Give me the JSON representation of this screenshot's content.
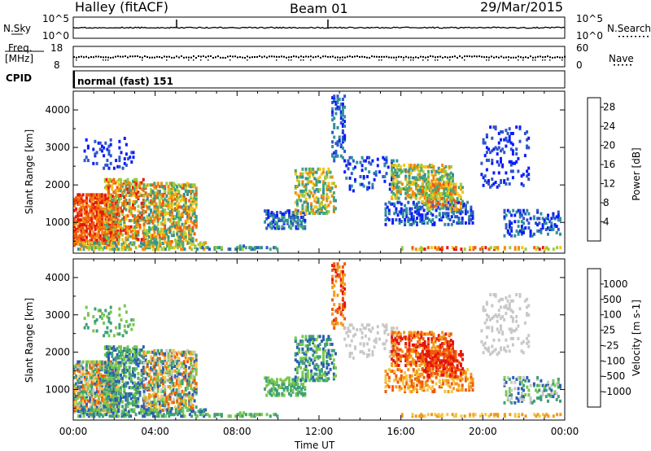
{
  "header": {
    "station": "Halley (fitACF)",
    "beam": "Beam 01",
    "date": "29/Mar/2015"
  },
  "panels": {
    "nsky": {
      "label": "N.Sky",
      "ticks": [
        "10^5",
        "10^0"
      ],
      "right_label": "N.Search",
      "right_ticks": [
        "10^5",
        "10^0"
      ]
    },
    "freq": {
      "label_top": "Freq.",
      "label_unit": "[MHz]",
      "ticks": [
        "18",
        "8"
      ],
      "right_label": "Nave",
      "right_ticks": [
        "60",
        "0"
      ]
    },
    "cpid": {
      "label": "CPID",
      "value": "normal (fast) 151"
    }
  },
  "colors": {
    "power": [
      "#0a1cff",
      "#2f56c8",
      "#2f8f9e",
      "#4aa772",
      "#9acb3e",
      "#f4c51a",
      "#f28a12",
      "#ef5a10",
      "#e6150f"
    ],
    "velocity": [
      "#e6150f",
      "#f05a0a",
      "#f29a1a",
      "#f5c64a",
      "#c8c8c8",
      "#78c850",
      "#3f9f7a",
      "#2c5fb0",
      "#1c2bd8"
    ]
  },
  "chart_data": [
    {
      "type": "heatmap",
      "name": "power-panel",
      "xlabel": "Time UT",
      "ylabel": "Slant Range [km]",
      "xlim": [
        0,
        24
      ],
      "ylim": [
        180,
        4500
      ],
      "x_ticks": [
        "00:00",
        "04:00",
        "08:00",
        "12:00",
        "16:00",
        "20:00",
        "00:00"
      ],
      "y_ticks": [
        "1000",
        "2000",
        "3000",
        "4000"
      ],
      "colorbar": {
        "label": "Power [dB]",
        "ticks": [
          "4",
          "8",
          "12",
          "16",
          "20",
          "24",
          "28"
        ],
        "range": [
          0,
          30
        ]
      }
    },
    {
      "type": "heatmap",
      "name": "velocity-panel",
      "xlabel": "Time UT",
      "ylabel": "Slant Range [km]",
      "xlim": [
        0,
        24
      ],
      "ylim": [
        180,
        4500
      ],
      "x_ticks": [
        "00:00",
        "04:00",
        "08:00",
        "12:00",
        "16:00",
        "20:00",
        "00:00"
      ],
      "y_ticks": [
        "1000",
        "2000",
        "3000",
        "4000"
      ],
      "colorbar": {
        "label": "Velocity [m s-1]",
        "ticks": [
          "1000",
          "500",
          "100",
          "25",
          "-25",
          "-100",
          "-500",
          "-1000"
        ]
      }
    }
  ]
}
